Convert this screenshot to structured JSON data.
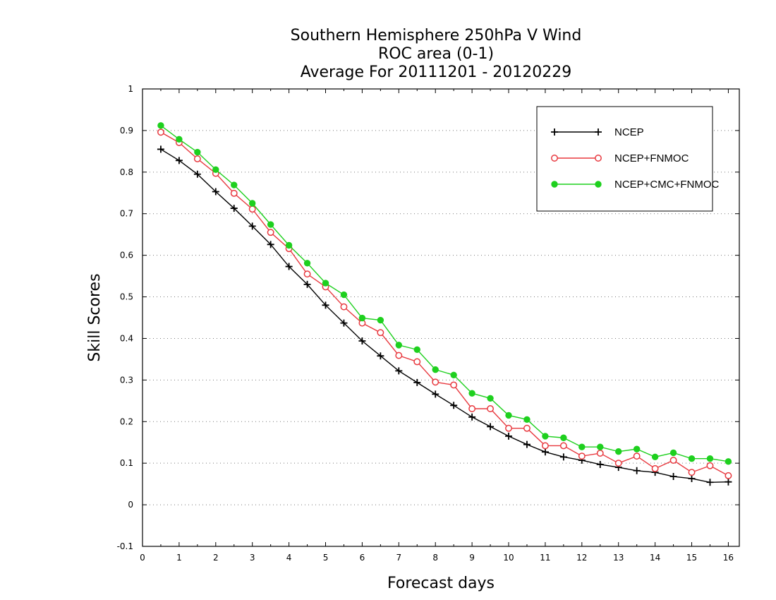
{
  "chart_data": {
    "type": "line",
    "title_lines": [
      "Southern Hemisphere 250hPa V Wind",
      "ROC area (0-1)",
      "Average For 20111201 - 20120229"
    ],
    "xlabel": "Forecast days",
    "ylabel": "Skill Scores",
    "xlim": [
      0,
      16.3
    ],
    "ylim": [
      -0.1,
      1
    ],
    "xticks": [
      0,
      1,
      2,
      3,
      4,
      5,
      6,
      7,
      8,
      9,
      10,
      11,
      12,
      13,
      14,
      15,
      16
    ],
    "yticks": [
      -0.1,
      0,
      0.1,
      0.2,
      0.3,
      0.4,
      0.5,
      0.6,
      0.7,
      0.8,
      0.9,
      1
    ],
    "ytick_labels": [
      "-0.1",
      "0",
      "0.1",
      "0.2",
      "0.3",
      "0.4",
      "0.5",
      "0.6",
      "0.7",
      "0.8",
      "0.9",
      "1"
    ],
    "grid": "horizontal dotted",
    "legend_position": "top-right",
    "x": [
      0.5,
      1,
      1.5,
      2,
      2.5,
      3,
      3.5,
      4,
      4.5,
      5,
      5.5,
      6,
      6.5,
      7,
      7.5,
      8,
      8.5,
      9,
      9.5,
      10,
      10.5,
      11,
      11.5,
      12,
      12.5,
      13,
      13.5,
      14,
      14.5,
      15,
      15.5,
      16
    ],
    "series": [
      {
        "name": "NCEP",
        "color": "#000000",
        "marker": "plus",
        "values": [
          0.855,
          0.828,
          0.795,
          0.753,
          0.713,
          0.67,
          0.626,
          0.573,
          0.53,
          0.48,
          0.437,
          0.394,
          0.358,
          0.322,
          0.294,
          0.266,
          0.239,
          0.211,
          0.188,
          0.165,
          0.145,
          0.127,
          0.115,
          0.107,
          0.097,
          0.09,
          0.082,
          0.078,
          0.068,
          0.063,
          0.054,
          0.055
        ]
      },
      {
        "name": "NCEP+FNMOC",
        "color": "#e8393f",
        "marker": "open-circle",
        "values": [
          0.896,
          0.871,
          0.832,
          0.797,
          0.749,
          0.711,
          0.655,
          0.616,
          0.555,
          0.524,
          0.476,
          0.437,
          0.414,
          0.359,
          0.344,
          0.295,
          0.288,
          0.231,
          0.231,
          0.184,
          0.184,
          0.142,
          0.142,
          0.117,
          0.124,
          0.1,
          0.117,
          0.087,
          0.107,
          0.078,
          0.094,
          0.07
        ]
      },
      {
        "name": "NCEP+CMC+FNMOC",
        "color": "#1ed01e",
        "marker": "filled-circle",
        "values": [
          0.912,
          0.879,
          0.848,
          0.806,
          0.769,
          0.725,
          0.674,
          0.624,
          0.581,
          0.533,
          0.505,
          0.449,
          0.444,
          0.384,
          0.373,
          0.325,
          0.312,
          0.268,
          0.256,
          0.215,
          0.205,
          0.165,
          0.161,
          0.139,
          0.139,
          0.128,
          0.134,
          0.115,
          0.125,
          0.111,
          0.111,
          0.104
        ]
      }
    ]
  }
}
